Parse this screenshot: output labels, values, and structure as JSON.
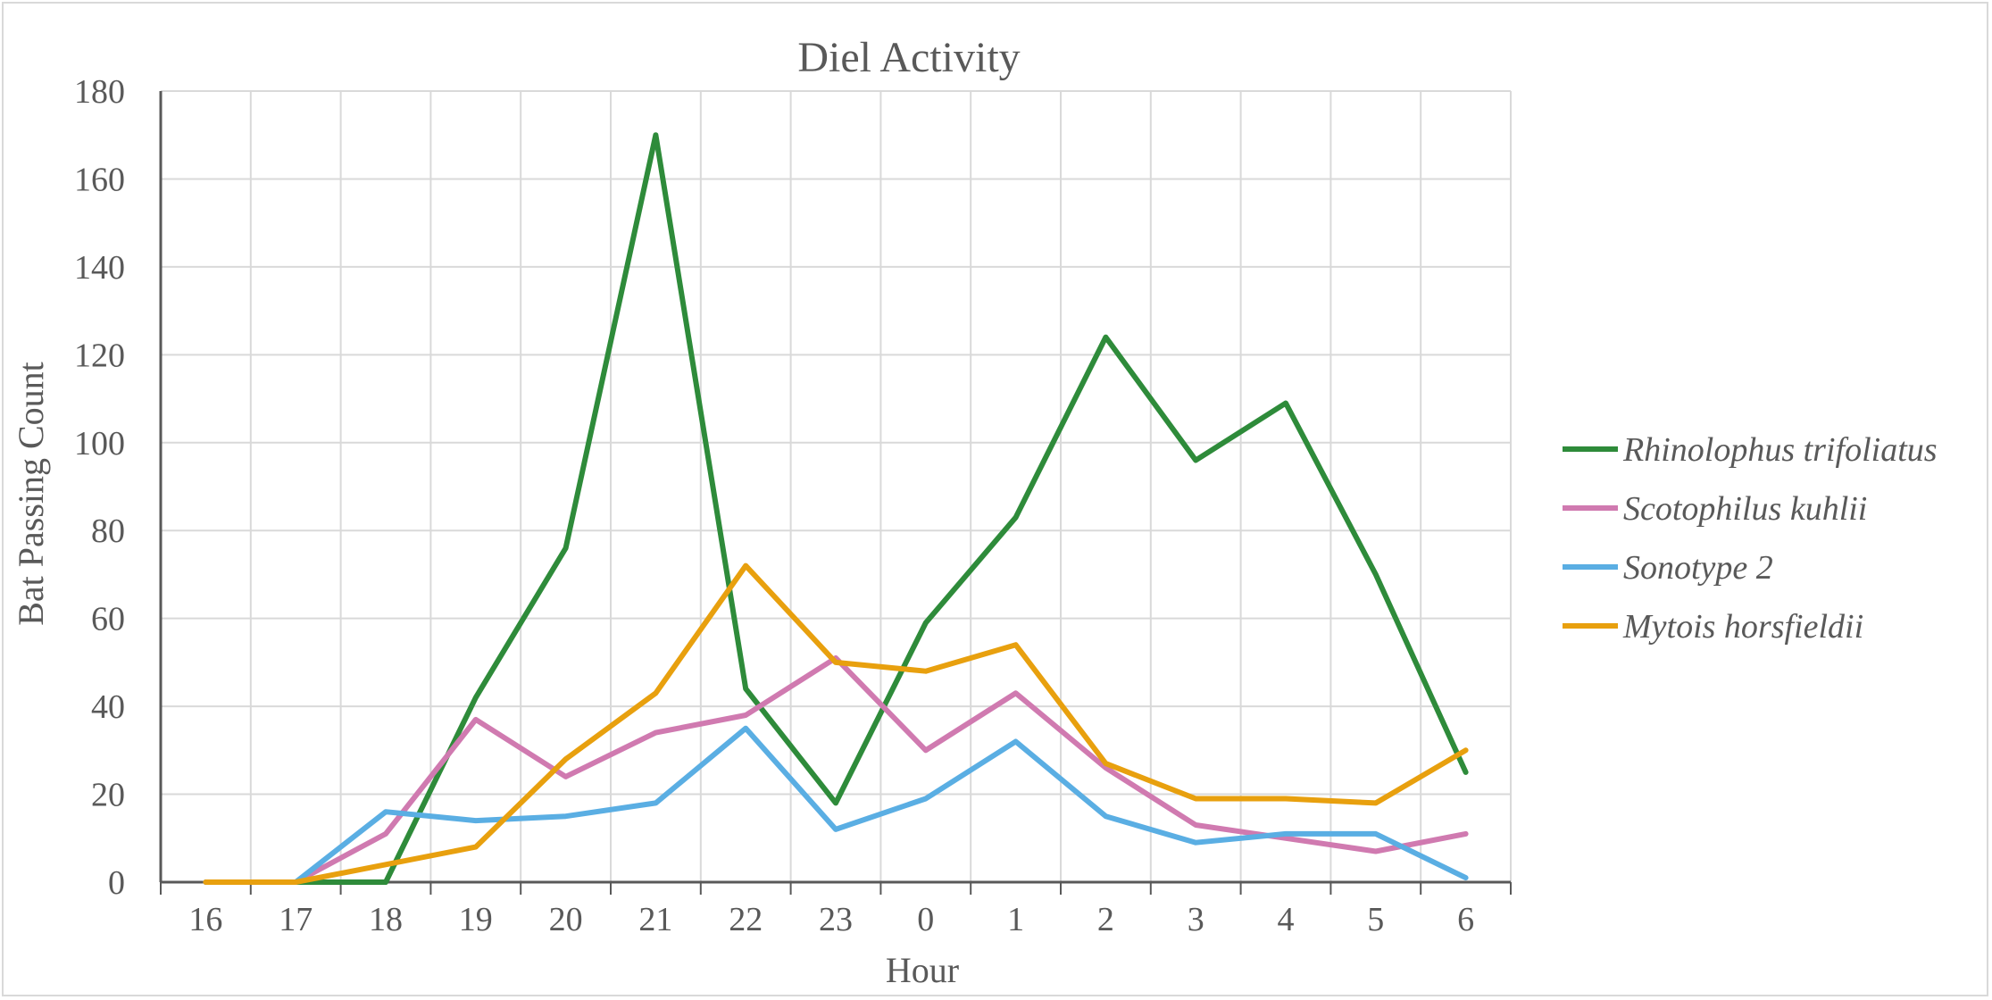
{
  "chart_data": {
    "type": "line",
    "title": "Diel Activity",
    "xlabel": "Hour",
    "ylabel": "Bat Passing Count",
    "categories": [
      "16",
      "17",
      "18",
      "19",
      "20",
      "21",
      "22",
      "23",
      "0",
      "1",
      "2",
      "3",
      "4",
      "5",
      "6"
    ],
    "ylim": [
      0,
      180
    ],
    "yticks": [
      0,
      20,
      40,
      60,
      80,
      100,
      120,
      140,
      160,
      180
    ],
    "grid": true,
    "legend_position": "right",
    "series": [
      {
        "name": "Rhinolophus trifoliatus",
        "color": "#2e8b3a",
        "values": [
          0,
          0,
          0,
          42,
          76,
          170,
          44,
          18,
          59,
          83,
          124,
          96,
          109,
          70,
          25
        ]
      },
      {
        "name": "Scotophilus kuhlii",
        "color": "#d07ab0",
        "values": [
          0,
          0,
          11,
          37,
          24,
          34,
          38,
          51,
          30,
          43,
          26,
          13,
          10,
          7,
          11
        ]
      },
      {
        "name": "Sonotype 2",
        "color": "#5aaee3",
        "values": [
          0,
          0,
          16,
          14,
          15,
          18,
          35,
          12,
          19,
          32,
          15,
          9,
          11,
          11,
          1
        ]
      },
      {
        "name": "Mytois horsfieldii",
        "color": "#e8a00e",
        "values": [
          0,
          0,
          4,
          8,
          28,
          43,
          72,
          50,
          48,
          54,
          27,
          19,
          19,
          18,
          30
        ]
      }
    ]
  }
}
